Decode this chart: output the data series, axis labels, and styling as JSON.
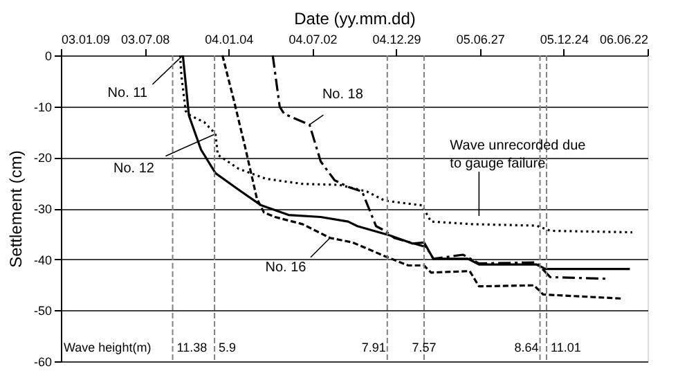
{
  "chart_data": {
    "type": "line",
    "xlabel": "Date (yy.mm.dd)",
    "ylabel": "Settlement (cm)",
    "xlim": [
      "2003-01-09",
      "2006-06-22"
    ],
    "xticks": [
      {
        "value": "2003-01-09",
        "label": "03.01.09"
      },
      {
        "value": "2003-07-08",
        "label": "03.07.08"
      },
      {
        "value": "2004-01-04",
        "label": "04.01.04"
      },
      {
        "value": "2004-07-02",
        "label": "04.07.02"
      },
      {
        "value": "2004-12-29",
        "label": "04.12.29"
      },
      {
        "value": "2005-06-27",
        "label": "05.06.27"
      },
      {
        "value": "2005-12-24",
        "label": "05.12.24"
      },
      {
        "value": "2006-06-22",
        "label": "06.06.22"
      }
    ],
    "ylim": [
      -60,
      0
    ],
    "yticks": [
      -60,
      -50,
      -40,
      -30,
      -20,
      -10,
      0
    ],
    "grid": "y",
    "legend": false,
    "series": [
      {
        "name": "No. 11",
        "color": "#000000",
        "line_style": "solid",
        "x": [
          "2003-09-28",
          "2003-10-11",
          "2003-11-06",
          "2003-12-07",
          "2004-01-25",
          "2004-03-14",
          "2004-05-12",
          "2004-07-20",
          "2004-09-17",
          "2004-10-07",
          "2004-12-15",
          "2005-02-02",
          "2005-02-27",
          "2005-03-19",
          "2005-06-01",
          "2005-06-25",
          "2005-10-26",
          "2005-11-15",
          "2006-05-15"
        ],
        "values": [
          0,
          -11.8,
          -18.5,
          -23.1,
          -26.3,
          -29.4,
          -31.3,
          -31.7,
          -32.6,
          -33.5,
          -35.3,
          -36.9,
          -36.7,
          -39.9,
          -39.9,
          -41.0,
          -41.0,
          -41.9,
          -41.9
        ]
      },
      {
        "name": "No. 12",
        "color": "#000000",
        "line_style": "dotted",
        "x": [
          "2003-09-22",
          "2003-09-25",
          "2003-10-04",
          "2003-10-14",
          "2003-11-13",
          "2003-12-07",
          "2003-12-12",
          "2004-01-25",
          "2004-03-24",
          "2004-06-11",
          "2004-08-29",
          "2004-10-27",
          "2004-12-05",
          "2005-02-22",
          "2005-03-14",
          "2005-06-10",
          "2005-10-26",
          "2005-11-25",
          "2006-05-20"
        ],
        "values": [
          0,
          -4.1,
          -10.9,
          -11.8,
          -13.1,
          -15.4,
          -19.5,
          -22.2,
          -24.2,
          -25.2,
          -25.4,
          -26.7,
          -28.5,
          -29.4,
          -32.6,
          -33.1,
          -33.4,
          -34.4,
          -34.7
        ]
      },
      {
        "name": "No. 16",
        "color": "#000000",
        "line_style": "dashed",
        "x": [
          "2003-12-22",
          "2004-01-16",
          "2004-02-09",
          "2004-03-05",
          "2004-03-20",
          "2004-04-13",
          "2004-06-11",
          "2004-08-09",
          "2004-09-27",
          "2004-12-05",
          "2005-01-24",
          "2005-02-27",
          "2005-03-14",
          "2005-06-05",
          "2005-06-25",
          "2005-10-21",
          "2005-11-10",
          "2006-04-30"
        ],
        "values": [
          0,
          -9.0,
          -18.1,
          -28.1,
          -30.8,
          -31.7,
          -33.1,
          -35.8,
          -36.7,
          -39.4,
          -41.2,
          -41.2,
          -42.6,
          -42.3,
          -45.3,
          -45.1,
          -46.9,
          -47.7
        ]
      },
      {
        "name": "No. 18",
        "color": "#000000",
        "line_style": "dashdot",
        "x": [
          "2004-04-08",
          "2004-04-23",
          "2004-05-03",
          "2004-06-26",
          "2004-07-20",
          "2004-08-19",
          "2004-09-17",
          "2004-10-17",
          "2004-10-27",
          "2004-11-16",
          "2004-12-05",
          "2004-12-25",
          "2005-03-04",
          "2005-03-19",
          "2005-05-22",
          "2005-06-25",
          "2005-10-26",
          "2005-11-25",
          "2006-03-27"
        ],
        "values": [
          0,
          -10.1,
          -11.5,
          -13.6,
          -20.8,
          -24.5,
          -25.8,
          -26.7,
          -29.0,
          -33.5,
          -34.4,
          -35.8,
          -37.6,
          -39.9,
          -39.1,
          -40.8,
          -40.6,
          -43.5,
          -43.8
        ]
      }
    ],
    "ref_lines": [
      {
        "axis": "x",
        "value": "2003-09-06",
        "label": "11.38",
        "color": "#808080",
        "line_style": "dashed"
      },
      {
        "axis": "x",
        "value": "2003-12-05",
        "label": "5.9",
        "color": "#808080",
        "line_style": "dashed"
      },
      {
        "axis": "x",
        "value": "2004-12-10",
        "label": "7.91",
        "color": "#808080",
        "line_style": "dashed"
      },
      {
        "axis": "x",
        "value": "2005-02-27",
        "label": "7.57",
        "color": "#808080",
        "line_style": "dashed"
      },
      {
        "axis": "x",
        "value": "2005-11-03",
        "label": "8.64",
        "color": "#808080",
        "line_style": "dashed"
      },
      {
        "axis": "x",
        "value": "2005-11-17",
        "label": "11.01",
        "color": "#808080",
        "line_style": "dashed"
      }
    ],
    "annotations": [
      {
        "text": "Wave unrecorded due to gauge failure",
        "x": "2005-06-25",
        "y": -31.5
      },
      "Wave height(m)"
    ]
  }
}
